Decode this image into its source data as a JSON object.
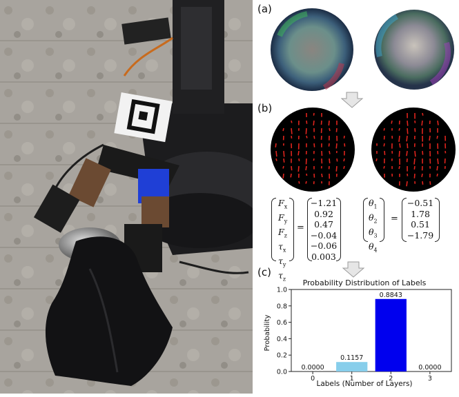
{
  "panels": {
    "a": "(a)",
    "b": "(b)",
    "c": "(c)"
  },
  "wrench": {
    "symbols": [
      "F_x",
      "F_y",
      "F_z",
      "τ_x",
      "τ_y",
      "τ_z"
    ],
    "values": [
      "−1.21",
      "0.92",
      "0.47",
      "−0.04",
      "−0.06",
      "0.003"
    ]
  },
  "angles": {
    "symbols": [
      "θ_1",
      "θ_2",
      "θ_3",
      "θ_4"
    ],
    "values": [
      "−0.51",
      "1.78",
      "0.51",
      "−1.79"
    ]
  },
  "eq_sign": "=",
  "chart_data": {
    "type": "bar",
    "title": "Probability Distribution of Labels",
    "xlabel": "Labels (Number of Layers)",
    "ylabel": "Probability",
    "categories": [
      "0",
      "1",
      "2",
      "3"
    ],
    "values": [
      0.0,
      0.1157,
      0.8843,
      0.0
    ],
    "value_labels": [
      "0.0000",
      "0.1157",
      "0.8843",
      "0.0000"
    ],
    "bar_colors": [
      "#87ceeb",
      "#87ceeb",
      "#0000ee",
      "#87ceeb"
    ],
    "ylim": [
      0,
      1.0
    ],
    "yticks": [
      "0.0",
      "0.2",
      "0.4",
      "0.6",
      "0.8",
      "1.0"
    ],
    "grid": false
  }
}
